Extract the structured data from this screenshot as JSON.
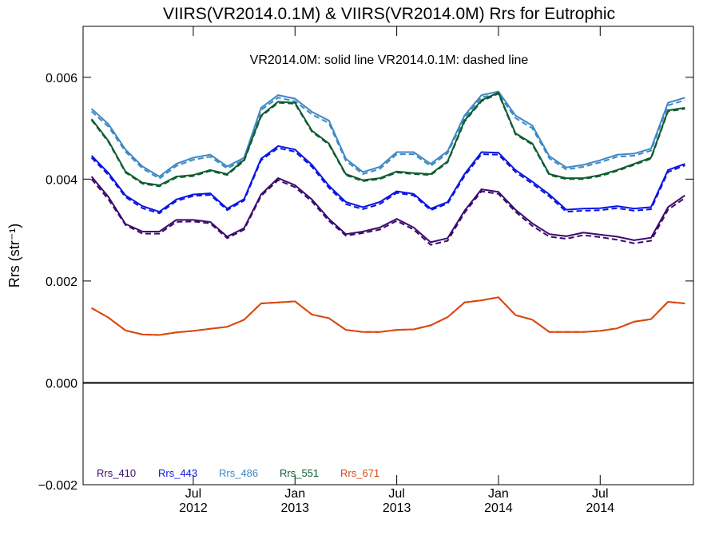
{
  "chart_data": {
    "type": "line",
    "title": "VIIRS(VR2014.0.1M) & VIIRS(VR2014.0M)  Rrs for Eutrophic",
    "annotation": "VR2014.0M: solid line   VR2014.0.1M: dashed line",
    "ylabel": "Rrs (str⁻¹)",
    "xlabel": "",
    "ylim": [
      -0.002,
      0.007
    ],
    "xlim": [
      "2012-01",
      "2014-12"
    ],
    "yticks": [
      {
        "value": -0.002,
        "label": "−0.002"
      },
      {
        "value": 0.0,
        "label": "0.000"
      },
      {
        "value": 0.002,
        "label": "0.002"
      },
      {
        "value": 0.004,
        "label": "0.004"
      },
      {
        "value": 0.006,
        "label": "0.006"
      }
    ],
    "xticks": [
      {
        "x": "2012-07",
        "month": "Jul",
        "year": "2012"
      },
      {
        "x": "2013-01",
        "month": "Jan",
        "year": "2013"
      },
      {
        "x": "2013-07",
        "month": "Jul",
        "year": "2013"
      },
      {
        "x": "2014-01",
        "month": "Jan",
        "year": "2014"
      },
      {
        "x": "2014-07",
        "month": "Jul",
        "year": "2014"
      }
    ],
    "legend_placement": "bottom-left",
    "grid": false,
    "x": [
      "2012-01",
      "2012-02",
      "2012-03",
      "2012-04",
      "2012-05",
      "2012-06",
      "2012-07",
      "2012-08",
      "2012-09",
      "2012-10",
      "2012-11",
      "2012-12",
      "2013-01",
      "2013-02",
      "2013-03",
      "2013-04",
      "2013-05",
      "2013-06",
      "2013-07",
      "2013-08",
      "2013-09",
      "2013-10",
      "2013-11",
      "2013-12",
      "2014-01",
      "2014-02",
      "2014-03",
      "2014-04",
      "2014-05",
      "2014-06",
      "2014-07",
      "2014-08",
      "2014-09",
      "2014-10",
      "2014-11",
      "2014-12"
    ],
    "series": [
      {
        "name": "Rrs_410",
        "color": "#3c0a6e",
        "solid": [
          0.00405,
          0.00365,
          0.00312,
          0.00297,
          0.00297,
          0.0032,
          0.0032,
          0.00316,
          0.00287,
          0.00304,
          0.0037,
          0.00402,
          0.00388,
          0.0036,
          0.00322,
          0.00292,
          0.00297,
          0.00305,
          0.00322,
          0.00305,
          0.00276,
          0.00284,
          0.00338,
          0.0038,
          0.00375,
          0.0034,
          0.00313,
          0.00292,
          0.00288,
          0.00295,
          0.00291,
          0.00287,
          0.0028,
          0.00285,
          0.00345,
          0.00368
        ],
        "dashed": [
          0.004,
          0.0036,
          0.0031,
          0.00293,
          0.00293,
          0.00316,
          0.00317,
          0.00313,
          0.00284,
          0.00301,
          0.00367,
          0.00398,
          0.00384,
          0.00356,
          0.00318,
          0.00289,
          0.00294,
          0.00301,
          0.00318,
          0.00301,
          0.00271,
          0.00279,
          0.00334,
          0.00376,
          0.00371,
          0.00336,
          0.00308,
          0.00287,
          0.00283,
          0.0029,
          0.00286,
          0.00281,
          0.00274,
          0.00279,
          0.0034,
          0.00363
        ]
      },
      {
        "name": "Rrs_443",
        "color": "#0a14e6",
        "solid": [
          0.00446,
          0.00412,
          0.00368,
          0.00347,
          0.00336,
          0.0036,
          0.0037,
          0.00372,
          0.00342,
          0.00361,
          0.0044,
          0.00465,
          0.00458,
          0.00428,
          0.00387,
          0.00355,
          0.00345,
          0.00355,
          0.00376,
          0.00371,
          0.00342,
          0.00355,
          0.0041,
          0.00453,
          0.00452,
          0.00418,
          0.00395,
          0.0037,
          0.0034,
          0.00342,
          0.00343,
          0.00347,
          0.00342,
          0.00345,
          0.00418,
          0.0043
        ],
        "dashed": [
          0.00442,
          0.00408,
          0.00365,
          0.00343,
          0.00333,
          0.00357,
          0.00367,
          0.00369,
          0.00339,
          0.00358,
          0.00437,
          0.00461,
          0.00454,
          0.00424,
          0.00383,
          0.00351,
          0.00341,
          0.00351,
          0.00373,
          0.00368,
          0.00339,
          0.00352,
          0.00406,
          0.00449,
          0.00448,
          0.00414,
          0.00391,
          0.00366,
          0.00336,
          0.00338,
          0.00339,
          0.00343,
          0.00338,
          0.00341,
          0.00414,
          0.00427
        ]
      },
      {
        "name": "Rrs_486",
        "color": "#3c88c6",
        "solid": [
          0.00538,
          0.00508,
          0.00458,
          0.00425,
          0.00405,
          0.0043,
          0.00442,
          0.00448,
          0.00425,
          0.00442,
          0.0054,
          0.00565,
          0.00558,
          0.00532,
          0.00515,
          0.0044,
          0.00414,
          0.00424,
          0.00453,
          0.00453,
          0.0043,
          0.00455,
          0.00525,
          0.00565,
          0.00572,
          0.00525,
          0.00505,
          0.00445,
          0.00423,
          0.00428,
          0.00437,
          0.00448,
          0.0045,
          0.0046,
          0.0055,
          0.0056
        ],
        "dashed": [
          0.00533,
          0.00503,
          0.00454,
          0.00421,
          0.00401,
          0.00426,
          0.00438,
          0.00444,
          0.00421,
          0.00438,
          0.00536,
          0.0056,
          0.00553,
          0.00527,
          0.0051,
          0.00436,
          0.0041,
          0.0042,
          0.00449,
          0.00449,
          0.00426,
          0.00451,
          0.0052,
          0.00561,
          0.00567,
          0.0052,
          0.005,
          0.00441,
          0.00419,
          0.00424,
          0.00433,
          0.00444,
          0.00446,
          0.00456,
          0.00545,
          0.00555
        ]
      },
      {
        "name": "Rrs_551",
        "color": "#0f5c32",
        "solid": [
          0.00518,
          0.00475,
          0.00415,
          0.00393,
          0.00388,
          0.00405,
          0.00408,
          0.00418,
          0.0041,
          0.00438,
          0.00525,
          0.00552,
          0.0055,
          0.00495,
          0.0047,
          0.0041,
          0.00398,
          0.00402,
          0.00415,
          0.00412,
          0.0041,
          0.00435,
          0.00515,
          0.00555,
          0.0057,
          0.0049,
          0.0047,
          0.0041,
          0.00402,
          0.00402,
          0.00408,
          0.00418,
          0.0043,
          0.00442,
          0.00535,
          0.0054
        ],
        "dashed": [
          0.00516,
          0.00473,
          0.00413,
          0.00391,
          0.00386,
          0.00403,
          0.00406,
          0.00416,
          0.00408,
          0.00436,
          0.00523,
          0.0055,
          0.00548,
          0.00493,
          0.00468,
          0.00408,
          0.00396,
          0.004,
          0.00413,
          0.0041,
          0.00408,
          0.00433,
          0.00513,
          0.00553,
          0.00568,
          0.00488,
          0.00468,
          0.00408,
          0.004,
          0.004,
          0.00406,
          0.00416,
          0.00428,
          0.0044,
          0.00533,
          0.00538
        ]
      },
      {
        "name": "Rrs_671",
        "color": "#d9470f",
        "solid": [
          0.00147,
          0.00128,
          0.00103,
          0.00095,
          0.00094,
          0.00099,
          0.00102,
          0.00106,
          0.0011,
          0.00124,
          0.00156,
          0.00158,
          0.0016,
          0.00134,
          0.00127,
          0.00104,
          0.001,
          0.001,
          0.00104,
          0.00105,
          0.00113,
          0.00129,
          0.00158,
          0.00162,
          0.00168,
          0.00133,
          0.00124,
          0.001,
          0.001,
          0.001,
          0.00102,
          0.00107,
          0.0012,
          0.00125,
          0.00159,
          0.00156
        ],
        "dashed": [
          0.00147,
          0.00128,
          0.00103,
          0.00095,
          0.00094,
          0.00099,
          0.00102,
          0.00106,
          0.0011,
          0.00124,
          0.00156,
          0.00158,
          0.0016,
          0.00134,
          0.00127,
          0.00104,
          0.001,
          0.001,
          0.00104,
          0.00105,
          0.00113,
          0.00129,
          0.00158,
          0.00162,
          0.00168,
          0.00133,
          0.00124,
          0.001,
          0.001,
          0.001,
          0.00102,
          0.00107,
          0.0012,
          0.00125,
          0.00159,
          0.00156
        ]
      }
    ]
  }
}
